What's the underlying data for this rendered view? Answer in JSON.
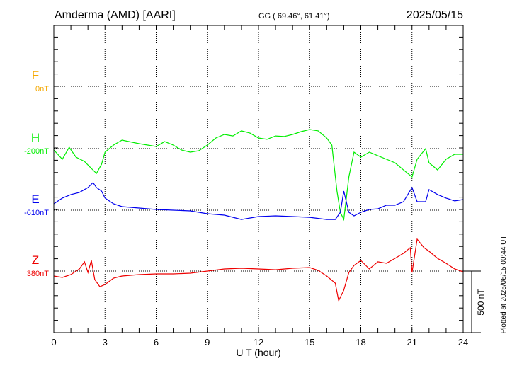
{
  "chart_data": {
    "type": "line",
    "title": "Amderma (AMD)  [AARI]",
    "coords": "GG ( 69.46°,  61.41°)",
    "date": "2025/05/15",
    "xlabel": "U T (hour)",
    "xlim": [
      0,
      24
    ],
    "xticks": [
      "0",
      "3",
      "6",
      "9",
      "12",
      "15",
      "18",
      "21",
      "24"
    ],
    "scale_bar": "500 nT",
    "plotted_note": "Plotted at 2025/06/15 00:44 UT",
    "series": [
      {
        "name": "F",
        "baseline_label": "0nT",
        "baseline": 0,
        "color": "#f5a800",
        "x": [],
        "values": []
      },
      {
        "name": "H",
        "baseline_label": "-200nT",
        "baseline": -200,
        "color": "#00ee00",
        "x": [
          0,
          0.5,
          0.9,
          1.3,
          1.8,
          2.2,
          2.5,
          2.8,
          3,
          3.5,
          4,
          5,
          6,
          6.5,
          7,
          7.5,
          8,
          8.5,
          9,
          9.5,
          10,
          10.5,
          11,
          11.5,
          12,
          12.5,
          13,
          13.5,
          14,
          14.5,
          15,
          15.5,
          16,
          16.3,
          16.6,
          16.8,
          17,
          17.3,
          17.6,
          18,
          18.5,
          19,
          19.5,
          20,
          20.5,
          21,
          21.3,
          21.8,
          22,
          22.5,
          23,
          23.5,
          24
        ],
        "values": [
          -211,
          -286,
          -189,
          -269,
          -304,
          -361,
          -401,
          -327,
          -229,
          -171,
          -131,
          -160,
          -183,
          -143,
          -171,
          -212,
          -229,
          -217,
          -171,
          -114,
          -85,
          -97,
          -56,
          -74,
          -114,
          -125,
          -97,
          -102,
          -85,
          -62,
          -45,
          -56,
          -114,
          -171,
          -545,
          -718,
          -775,
          -430,
          -229,
          -269,
          -229,
          -258,
          -286,
          -315,
          -373,
          -430,
          -286,
          -200,
          -315,
          -373,
          -286,
          -246,
          -246
        ]
      },
      {
        "name": "E",
        "baseline_label": "-610nT",
        "baseline": -610,
        "color": "#0000ee",
        "x": [
          0,
          0.5,
          1,
          1.5,
          2,
          2.3,
          2.5,
          2.8,
          3,
          3.5,
          4,
          5,
          6,
          7,
          8,
          9,
          10,
          11,
          12,
          13,
          14,
          15,
          16,
          16.5,
          16.8,
          17,
          17.3,
          17.6,
          18,
          18.5,
          19,
          19.5,
          20,
          20.5,
          21,
          21.3,
          21.8,
          22,
          22.5,
          23,
          23.5,
          24
        ],
        "values": [
          -558,
          -512,
          -483,
          -466,
          -426,
          -386,
          -426,
          -455,
          -512,
          -558,
          -581,
          -593,
          -604,
          -610,
          -616,
          -639,
          -650,
          -685,
          -662,
          -656,
          -662,
          -668,
          -685,
          -685,
          -627,
          -455,
          -627,
          -656,
          -627,
          -604,
          -599,
          -570,
          -570,
          -541,
          -426,
          -541,
          -541,
          -443,
          -483,
          -512,
          -535,
          -524
        ]
      },
      {
        "name": "Z",
        "baseline_label": "380nT",
        "baseline": 380,
        "color": "#ee0000",
        "x": [
          0,
          0.5,
          1,
          1.5,
          1.8,
          2,
          2.2,
          2.4,
          2.7,
          3,
          3.5,
          4,
          5,
          6,
          7,
          8,
          9,
          10,
          11,
          12,
          13,
          14,
          15,
          15.5,
          16,
          16.5,
          16.7,
          17,
          17.3,
          17.6,
          18,
          18.5,
          19,
          19.5,
          20,
          20.5,
          20.9,
          21,
          21.3,
          21.7,
          22,
          22.5,
          23,
          23.5,
          24
        ],
        "values": [
          340,
          328,
          351,
          397,
          455,
          368,
          466,
          311,
          253,
          271,
          322,
          340,
          351,
          357,
          357,
          363,
          380,
          397,
          403,
          397,
          391,
          403,
          409,
          386,
          340,
          282,
          139,
          225,
          368,
          426,
          466,
          397,
          455,
          443,
          483,
          524,
          570,
          368,
          639,
          570,
          541,
          483,
          443,
          397,
          374
        ]
      }
    ]
  }
}
